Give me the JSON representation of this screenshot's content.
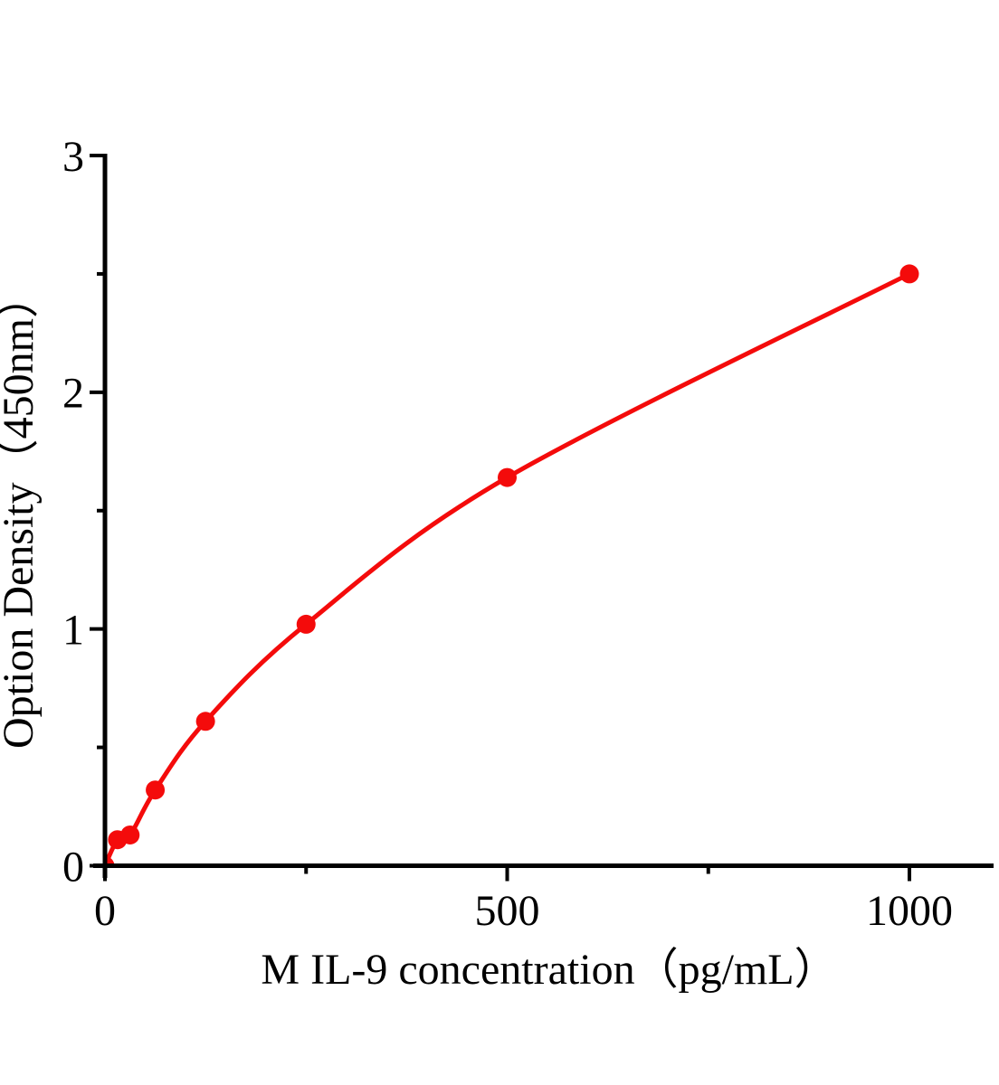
{
  "page": {
    "background_color": "#ffffff"
  },
  "chart_data": {
    "type": "line",
    "subtype": "scatter-with-smooth-curve",
    "title": "",
    "xlabel": "M IL-9 concentration（pg/mL）",
    "ylabel": "Option Density（450nm）",
    "x": [
      0,
      15.6,
      31.25,
      62.5,
      125,
      250,
      500,
      1000
    ],
    "y": [
      0,
      0.11,
      0.13,
      0.32,
      0.61,
      1.02,
      1.64,
      2.5
    ],
    "xlim": [
      0,
      1105
    ],
    "ylim": [
      0,
      3
    ],
    "x_axis": {
      "major_ticks": [
        0,
        500,
        1000
      ],
      "major_tick_labels": [
        "0",
        "500",
        "1000"
      ],
      "minor_ticks": [
        250,
        750
      ]
    },
    "y_axis": {
      "major_ticks": [
        0,
        1,
        2,
        3
      ],
      "major_tick_labels": [
        "0",
        "1",
        "2",
        "3"
      ],
      "minor_ticks": [
        0.5,
        1.5,
        2.5
      ]
    },
    "grid": false,
    "legend": "none",
    "marker": "filled-circle",
    "colors": {
      "curve": "#F40B0B",
      "marker": "#F40B0B",
      "axis": "#000000",
      "text": "#000000"
    }
  }
}
